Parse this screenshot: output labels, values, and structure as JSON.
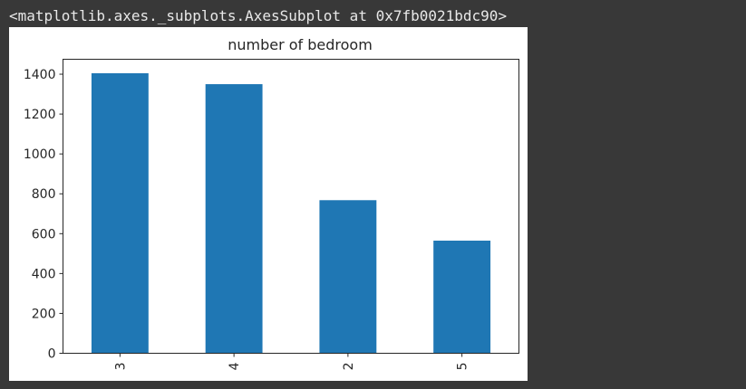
{
  "output": {
    "repr_text": "<matplotlib.axes._subplots.AxesSubplot at 0x7fb0021bdc90>"
  },
  "colors": {
    "background": "#383838",
    "figure_bg": "#ffffff",
    "bar": "#1f77b4",
    "text": "#262626"
  },
  "chart_data": {
    "type": "bar",
    "title": "number of bedroom",
    "xlabel": "",
    "ylabel": "",
    "categories": [
      "3",
      "4",
      "2",
      "5"
    ],
    "values": [
      1405,
      1350,
      768,
      565
    ],
    "ylim": [
      0,
      1475
    ],
    "yticks": [
      0,
      200,
      400,
      600,
      800,
      1000,
      1200,
      1400
    ],
    "grid": false,
    "legend": "none"
  }
}
